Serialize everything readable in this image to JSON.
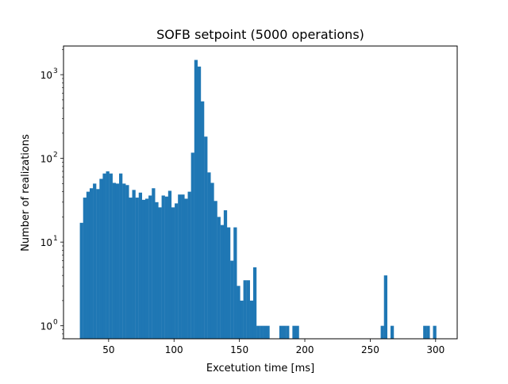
{
  "chart_data": {
    "type": "bar",
    "title": "SOFB setpoint (5000 operations)",
    "xlabel": "Excetution time [ms]",
    "ylabel": "Number of realizations",
    "xlim": [
      15.5,
      316.5
    ],
    "ylim": [
      0.7,
      2200
    ],
    "yscale": "log",
    "grid": false,
    "color": "#1f77b4",
    "xticks": [
      50,
      100,
      150,
      200,
      250,
      300
    ],
    "xtick_labels": [
      "50",
      "100",
      "150",
      "200",
      "250",
      "300"
    ],
    "yticks": [
      1,
      10,
      100,
      1000
    ],
    "ytick_base": "10",
    "ytick_exponents": [
      "0",
      "1",
      "2",
      "3"
    ],
    "bin_width": 2.5,
    "series": [
      {
        "bin_starts": [
          28,
          30.5,
          33,
          35.5,
          38,
          40.5,
          43,
          45.5,
          48,
          50.5,
          53,
          55.5,
          58,
          60.5,
          63,
          65.5,
          68,
          70.5,
          73,
          75.5,
          78,
          80.5,
          83,
          85.5,
          88,
          90.5,
          93,
          95.5,
          98,
          100.5,
          103,
          105.5,
          108,
          110.5,
          113,
          115.5,
          118,
          120.5,
          123,
          125.5,
          128,
          130.5,
          133,
          135.5,
          138,
          140.5,
          143,
          145.5,
          148,
          150.5,
          153,
          155.5,
          158,
          160.5,
          163,
          165.5,
          168,
          170.5,
          180.5,
          183,
          185.5,
          190.5,
          193,
          258,
          260.5,
          265.5,
          290.5,
          293,
          298
        ],
        "values": [
          17,
          34,
          40,
          44,
          50,
          43,
          57,
          66,
          70,
          66,
          51,
          50,
          66,
          50,
          48,
          34,
          42,
          34,
          39,
          32,
          33,
          36,
          44,
          30,
          26,
          36,
          35,
          41,
          26,
          29,
          37,
          37,
          33,
          40,
          117,
          1500,
          1250,
          480,
          182,
          68,
          51,
          31,
          20,
          16,
          24,
          15,
          6,
          15,
          3,
          2,
          3.5,
          3.5,
          2,
          5,
          1,
          1,
          1,
          1,
          1,
          1,
          1,
          1,
          1,
          1,
          4,
          1,
          1,
          1,
          1
        ]
      }
    ]
  }
}
